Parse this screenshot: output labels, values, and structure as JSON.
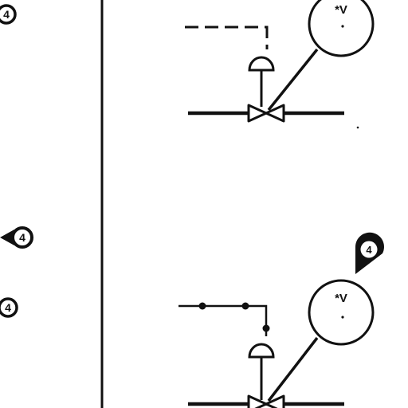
{
  "callouts": {
    "top_left": "4",
    "middle_left": "4",
    "lower_left": "4",
    "right_marker": "4"
  },
  "instruments": {
    "top": {
      "label": "*V"
    },
    "bottom": {
      "label": "*V"
    }
  },
  "colors": {
    "ink": "#111111",
    "background": "#ffffff"
  }
}
